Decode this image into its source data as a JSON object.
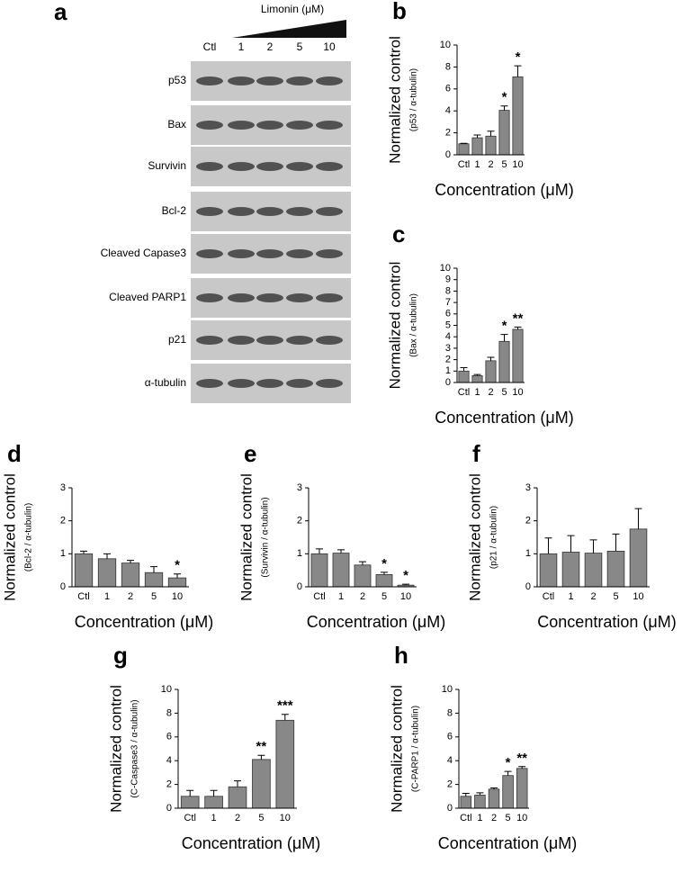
{
  "blot": {
    "panel_label": "a",
    "treatment_label": "Limonin (μM)",
    "lanes": [
      "Ctl",
      "1",
      "2",
      "5",
      "10"
    ],
    "rows": [
      "p53",
      "Bax",
      "Survivin",
      "Bcl-2",
      "Cleaved Capase3",
      "Cleaved PARP1",
      "p21",
      "α-tubulin"
    ]
  },
  "chart_data": [
    {
      "type": "bar",
      "panel_label": "b",
      "y_label": "Normalized control",
      "y_sublabel": "(p53 / α-tubulin)",
      "x_label": "Concentration (μM)",
      "categories": [
        "Ctl",
        "1",
        "2",
        "5",
        "10"
      ],
      "values": [
        1.0,
        1.55,
        1.7,
        4.05,
        7.1
      ],
      "errors": [
        0.05,
        0.25,
        0.45,
        0.4,
        1.0
      ],
      "annotations": [
        null,
        null,
        null,
        "*",
        "*"
      ],
      "ylim": [
        0,
        10
      ],
      "yticks": [
        0,
        2,
        4,
        6,
        8,
        10
      ],
      "color": "#888888"
    },
    {
      "type": "bar",
      "panel_label": "c",
      "y_label": "Normalized control",
      "y_sublabel": "(Bax / α-tubulin)",
      "x_label": "Concentration (μM)",
      "categories": [
        "Ctl",
        "1",
        "2",
        "5",
        "10"
      ],
      "values": [
        1.0,
        0.6,
        1.9,
        3.6,
        4.65
      ],
      "errors": [
        0.3,
        0.1,
        0.3,
        0.6,
        0.2
      ],
      "annotations": [
        null,
        null,
        null,
        "*",
        "**"
      ],
      "ylim": [
        0,
        10
      ],
      "yticks": [
        0,
        1,
        2,
        3,
        4,
        5,
        6,
        7,
        8,
        9,
        10
      ],
      "color": "#888888"
    },
    {
      "type": "bar",
      "panel_label": "d",
      "y_label": "Normalized control",
      "y_sublabel": "(Bcl-2 / α-tubulin)",
      "x_label": "Concentration (μM)",
      "categories": [
        "Ctl",
        "1",
        "2",
        "5",
        "10"
      ],
      "values": [
        1.0,
        0.85,
        0.72,
        0.43,
        0.27
      ],
      "errors": [
        0.08,
        0.15,
        0.08,
        0.18,
        0.12
      ],
      "annotations": [
        null,
        null,
        null,
        null,
        "*"
      ],
      "ylim": [
        0,
        3
      ],
      "yticks": [
        0,
        1,
        2,
        3
      ],
      "color": "#888888"
    },
    {
      "type": "bar",
      "panel_label": "e",
      "y_label": "Normalized control",
      "y_sublabel": "(Survivin / α-tubulin)",
      "x_label": "Concentration (μM)",
      "categories": [
        "Ctl",
        "1",
        "2",
        "5",
        "10"
      ],
      "values": [
        1.0,
        1.02,
        0.66,
        0.37,
        0.05
      ],
      "errors": [
        0.15,
        0.1,
        0.1,
        0.07,
        0.03
      ],
      "annotations": [
        null,
        null,
        null,
        "*",
        "*"
      ],
      "ylim": [
        0,
        3
      ],
      "yticks": [
        0,
        1,
        2,
        3
      ],
      "color": "#888888"
    },
    {
      "type": "bar",
      "panel_label": "f",
      "y_label": "Normalized control",
      "y_sublabel": "(p21 / α-tubulin)",
      "x_label": "Concentration (μM)",
      "categories": [
        "Ctl",
        "1",
        "2",
        "5",
        "10"
      ],
      "values": [
        1.0,
        1.05,
        1.02,
        1.08,
        1.75
      ],
      "errors": [
        0.48,
        0.5,
        0.4,
        0.52,
        0.62
      ],
      "annotations": [
        null,
        null,
        null,
        null,
        null
      ],
      "ylim": [
        0,
        3
      ],
      "yticks": [
        0,
        1,
        2,
        3
      ],
      "color": "#888888"
    },
    {
      "type": "bar",
      "panel_label": "g",
      "y_label": "Normalized control",
      "y_sublabel": "(C-Caspase3 / α-tubulin)",
      "x_label": "Concentration (μM)",
      "categories": [
        "Ctl",
        "1",
        "2",
        "5",
        "10"
      ],
      "values": [
        1.0,
        1.0,
        1.8,
        4.1,
        7.4
      ],
      "errors": [
        0.5,
        0.5,
        0.5,
        0.35,
        0.5
      ],
      "annotations": [
        null,
        null,
        null,
        "**",
        "***"
      ],
      "ylim": [
        0,
        10
      ],
      "yticks": [
        0,
        2,
        4,
        6,
        8,
        10
      ],
      "color": "#888888"
    },
    {
      "type": "bar",
      "panel_label": "h",
      "y_label": "Normalized control",
      "y_sublabel": "(C-PARP1 / α-tubulin)",
      "x_label": "Concentration (μM)",
      "categories": [
        "Ctl",
        "1",
        "2",
        "5",
        "10"
      ],
      "values": [
        1.0,
        1.1,
        1.6,
        2.75,
        3.35
      ],
      "errors": [
        0.25,
        0.2,
        0.1,
        0.35,
        0.15
      ],
      "annotations": [
        null,
        null,
        null,
        "*",
        "**"
      ],
      "ylim": [
        0,
        10
      ],
      "yticks": [
        0,
        2,
        4,
        6,
        8,
        10
      ],
      "color": "#888888"
    }
  ]
}
